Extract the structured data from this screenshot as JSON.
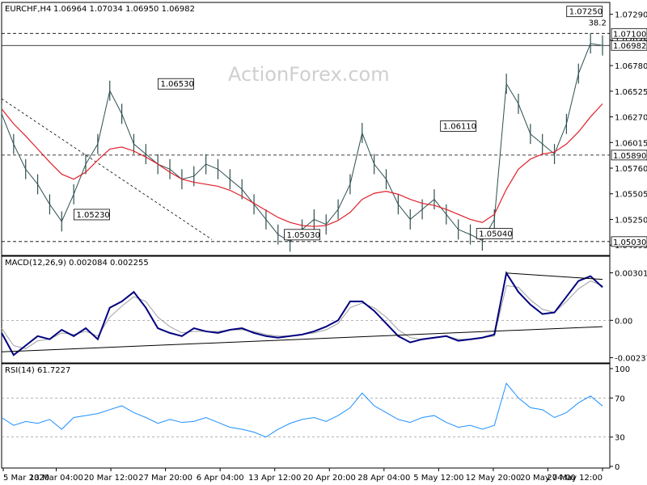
{
  "chart_data": {
    "type": "line",
    "symbol": "EURCHF,H4",
    "ohlc_text": "1.06964 1.07034 1.06950 1.06982",
    "watermark": "ActionForex.com",
    "x_labels": [
      "5 Mar 2020",
      "13 Mar 04:00",
      "20 Mar 12:00",
      "27 Mar 20:00",
      "6 Apr 04:00",
      "13 Apr 12:00",
      "20 Apr 20:00",
      "28 Apr 04:00",
      "5 May 12:00",
      "12 May 20:00",
      "20 May 04:00",
      "27 May 12:00"
    ],
    "price_panel": {
      "ylim": [
        1.049,
        1.074
      ],
      "y_ticks": [
        "1.07290",
        "1.07035",
        "1.06780",
        "1.06525",
        "1.06270",
        "1.06015",
        "1.05760",
        "1.05505",
        "1.05250",
        "1.04995"
      ],
      "last_price": "1.06982",
      "x": [
        0,
        2,
        4,
        6,
        8,
        10,
        12,
        14,
        16,
        18,
        20,
        22,
        24,
        26,
        28,
        30,
        32,
        34,
        36,
        38,
        40,
        42,
        44,
        46,
        48,
        50,
        52,
        54,
        56,
        58,
        60,
        62,
        64,
        66,
        68,
        70,
        72,
        74,
        76,
        78,
        80,
        82,
        84,
        86,
        88,
        90,
        92,
        94,
        96,
        98,
        100
      ],
      "close": [
        1.063,
        1.06,
        1.0575,
        1.056,
        1.054,
        1.0523,
        1.055,
        1.058,
        1.06,
        1.0653,
        1.063,
        1.06,
        1.059,
        1.058,
        1.0575,
        1.0565,
        1.0568,
        1.058,
        1.0575,
        1.0565,
        1.0555,
        1.054,
        1.0525,
        1.051,
        1.0503,
        1.0515,
        1.0525,
        1.052,
        1.0535,
        1.056,
        1.0611,
        1.058,
        1.0565,
        1.054,
        1.0525,
        1.0535,
        1.0545,
        1.053,
        1.0515,
        1.051,
        1.0504,
        1.0525,
        1.066,
        1.064,
        1.061,
        1.06,
        1.059,
        1.062,
        1.067,
        1.07,
        1.0698
      ],
      "ma": [
        1.0635,
        1.062,
        1.0608,
        1.0595,
        1.0582,
        1.057,
        1.0565,
        1.0572,
        1.0584,
        1.0595,
        1.0597,
        1.0593,
        1.0587,
        1.058,
        1.0572,
        1.0565,
        1.0562,
        1.056,
        1.0558,
        1.0554,
        1.0548,
        1.0541,
        1.0534,
        1.0527,
        1.0522,
        1.0519,
        1.0518,
        1.0519,
        1.0524,
        1.0532,
        1.0545,
        1.0551,
        1.0553,
        1.055,
        1.0545,
        1.0541,
        1.0539,
        1.0535,
        1.053,
        1.0525,
        1.0522,
        1.053,
        1.0555,
        1.0575,
        1.0585,
        1.059,
        1.0592,
        1.06,
        1.0612,
        1.0627,
        1.064
      ],
      "hlines": [
        {
          "value": 1.071,
          "label": "1.07100",
          "style": "dash"
        },
        {
          "value": 1.0698,
          "label": "",
          "style": "solid"
        },
        {
          "value": 1.0589,
          "label": "1.05890",
          "style": "dash"
        },
        {
          "value": 1.0503,
          "label": "1.05030",
          "style": "dash"
        }
      ],
      "trendline": {
        "x": [
          0,
          35
        ],
        "y": [
          1.0645,
          1.0505
        ]
      },
      "annotations": [
        {
          "label": "1.06530",
          "x": 29,
          "y": 1.0653
        },
        {
          "label": "1.05230",
          "x": 15,
          "y": 1.0523
        },
        {
          "label": "1.05030",
          "x": 50,
          "y": 1.0503
        },
        {
          "label": "1.06110",
          "x": 76,
          "y": 1.0611
        },
        {
          "label": "1.05040",
          "x": 82,
          "y": 1.0504
        },
        {
          "label": "1.07250",
          "x": 97,
          "y": 1.0725
        },
        {
          "label": "38.2",
          "x": 99,
          "y": 1.0721
        }
      ],
      "price_tags": [
        {
          "label": "1.07100",
          "value": 1.071
        },
        {
          "label": "1.06982",
          "value": 1.0698
        },
        {
          "label": "1.05890",
          "value": 1.0589
        },
        {
          "label": "1.05030",
          "value": 1.0503
        }
      ],
      "colors": {
        "price": "#2f4f4f",
        "ma": "#e0202a"
      }
    },
    "macd_panel": {
      "title": "MACD(12,26,9) 0.002084 0.002255",
      "ylim": [
        -0.0026,
        0.0034
      ],
      "y_ticks": [
        "0.003017",
        "0.00",
        "-0.00237"
      ],
      "zero_label": "0.00",
      "x": [
        0,
        2,
        4,
        6,
        8,
        10,
        12,
        14,
        16,
        18,
        20,
        22,
        24,
        26,
        28,
        30,
        32,
        34,
        36,
        38,
        40,
        42,
        44,
        46,
        48,
        50,
        52,
        54,
        56,
        58,
        60,
        62,
        64,
        66,
        68,
        70,
        72,
        74,
        76,
        78,
        80,
        82,
        84,
        86,
        88,
        90,
        92,
        94,
        96,
        98,
        100
      ],
      "macd": [
        -0.0008,
        -0.0022,
        -0.0016,
        -0.001,
        -0.0012,
        -0.0006,
        -0.001,
        -0.0005,
        -0.0012,
        0.0008,
        0.0012,
        0.0018,
        0.0008,
        -0.0005,
        -0.0008,
        -0.001,
        -0.0005,
        -0.0007,
        -0.0008,
        -0.0006,
        -0.0005,
        -0.0008,
        -0.001,
        -0.0011,
        -0.001,
        -0.0009,
        -0.0007,
        -0.0004,
        0.0,
        0.0012,
        0.0012,
        0.0006,
        -0.0002,
        -0.001,
        -0.0014,
        -0.0012,
        -0.0011,
        -0.001,
        -0.0013,
        -0.0012,
        -0.0011,
        -0.0009,
        0.003,
        0.0018,
        0.001,
        0.0004,
        0.0005,
        0.0015,
        0.0025,
        0.0028,
        0.0021
      ],
      "signal": [
        -0.0005,
        -0.0016,
        -0.0018,
        -0.0013,
        -0.0012,
        -0.0008,
        -0.0009,
        -0.0007,
        -0.001,
        0.0002,
        0.0009,
        0.0015,
        0.0012,
        0.0002,
        -0.0004,
        -0.0008,
        -0.0007,
        -0.0007,
        -0.0007,
        -0.0006,
        -0.0006,
        -0.0007,
        -0.0009,
        -0.001,
        -0.001,
        -0.0009,
        -0.0008,
        -0.0006,
        -0.0002,
        0.0008,
        0.0011,
        0.0008,
        0.0002,
        -0.0006,
        -0.0011,
        -0.0012,
        -0.0011,
        -0.001,
        -0.0012,
        -0.0012,
        -0.0011,
        -0.001,
        0.0022,
        0.0021,
        0.0013,
        0.0007,
        0.0005,
        0.0012,
        0.002,
        0.0025,
        0.0022
      ],
      "trend_upper": {
        "x": [
          84,
          100
        ],
        "y": [
          0.003,
          0.0026
        ]
      },
      "trend_lower": {
        "x": [
          0,
          100
        ],
        "y": [
          -0.002,
          -0.0004
        ]
      },
      "colors": {
        "macd": "#000080",
        "signal": "#a0a0a0"
      }
    },
    "rsi_panel": {
      "title": "RSI(14) 61.7227",
      "ylim": [
        0,
        100
      ],
      "y_ticks": [
        "100",
        "70",
        "30",
        "0"
      ],
      "levels": [
        70,
        30
      ],
      "x": [
        0,
        2,
        4,
        6,
        8,
        10,
        12,
        14,
        16,
        18,
        20,
        22,
        24,
        26,
        28,
        30,
        32,
        34,
        36,
        38,
        40,
        42,
        44,
        46,
        48,
        50,
        52,
        54,
        56,
        58,
        60,
        62,
        64,
        66,
        68,
        70,
        72,
        74,
        76,
        78,
        80,
        82,
        84,
        86,
        88,
        90,
        92,
        94,
        96,
        98,
        100
      ],
      "rsi": [
        50,
        42,
        46,
        44,
        48,
        38,
        50,
        52,
        54,
        58,
        62,
        55,
        50,
        44,
        48,
        45,
        46,
        50,
        45,
        40,
        38,
        35,
        30,
        38,
        44,
        48,
        50,
        46,
        52,
        60,
        75,
        62,
        55,
        48,
        45,
        50,
        52,
        45,
        40,
        42,
        38,
        42,
        85,
        70,
        60,
        58,
        50,
        55,
        65,
        72,
        61.72
      ],
      "colors": {
        "rsi": "#1e90ff"
      }
    }
  }
}
